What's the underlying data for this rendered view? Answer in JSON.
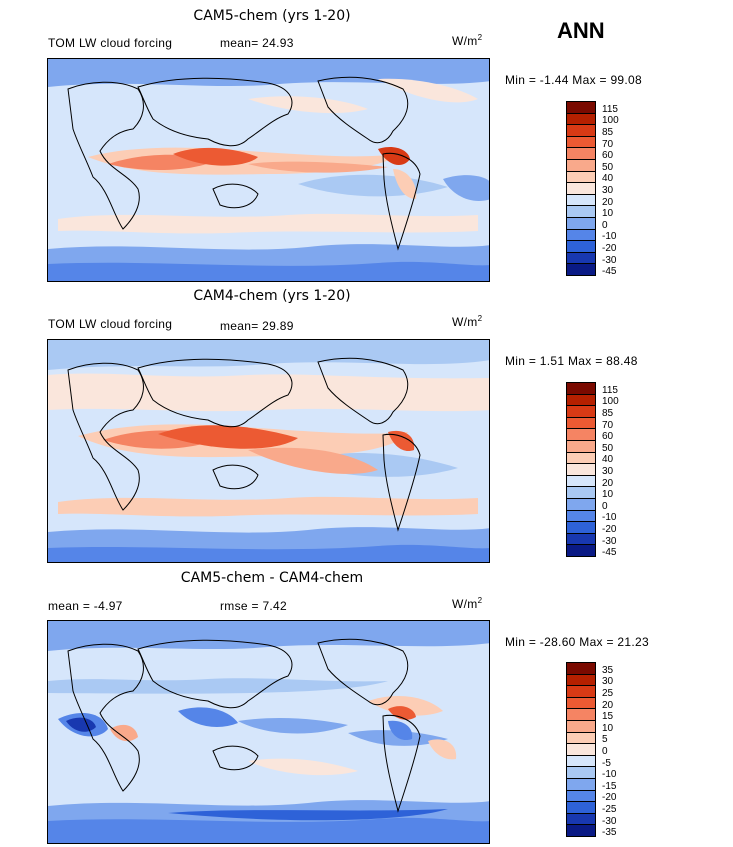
{
  "season": "ANN",
  "units": "W/m",
  "units_exp": "2",
  "panels": [
    {
      "title": "CAM5-chem (yrs 1-20)",
      "variable": "TOM LW cloud forcing",
      "stat1": "mean=  24.93",
      "stat2": "",
      "minmax": "Min =   -1.44 Max =  99.08",
      "cbar_labels": [
        "115",
        "100",
        "85",
        "70",
        "60",
        "50",
        "40",
        "30",
        "20",
        "10",
        "0",
        "-10",
        "-20",
        "-30",
        "-45"
      ]
    },
    {
      "title": "CAM4-chem (yrs 1-20)",
      "variable": "TOM LW cloud forcing",
      "stat1": "mean=  29.89",
      "stat2": "",
      "minmax": "Min =    1.51 Max =  88.48",
      "cbar_labels": [
        "115",
        "100",
        "85",
        "70",
        "60",
        "50",
        "40",
        "30",
        "20",
        "10",
        "0",
        "-10",
        "-20",
        "-30",
        "-45"
      ]
    },
    {
      "title": "CAM5-chem - CAM4-chem",
      "variable": "",
      "stat1": "mean =   -4.97",
      "stat2": "rmse =    7.42",
      "minmax": "Min =  -28.60 Max =  21.23",
      "cbar_labels": [
        "35",
        "30",
        "25",
        "20",
        "15",
        "10",
        "5",
        "0",
        "-5",
        "-10",
        "-15",
        "-20",
        "-25",
        "-30",
        "-35"
      ]
    }
  ],
  "colors": {
    "abs_scale": [
      "#7a0a00",
      "#b52000",
      "#d83a15",
      "#ec5a33",
      "#f58463",
      "#f9a98b",
      "#fccdb5",
      "#fae6dc",
      "#d6e6fb",
      "#aac9f3",
      "#7fa7ee",
      "#5585e8",
      "#2e62d8",
      "#1838b0",
      "#0a1a85"
    ],
    "diff_scale": [
      "#7a0a00",
      "#b52000",
      "#d83a15",
      "#ec5a33",
      "#f58463",
      "#f9a98b",
      "#fccdb5",
      "#fae6dc",
      "#d6e6fb",
      "#aac9f3",
      "#7fa7ee",
      "#5585e8",
      "#2e62d8",
      "#1838b0",
      "#0a1a85"
    ]
  },
  "chart_data": [
    {
      "type": "heatmap",
      "title": "CAM5-chem (yrs 1-20)",
      "variable": "TOM LW cloud forcing",
      "units": "W/m2",
      "mean": 24.93,
      "min": -1.44,
      "max": 99.08,
      "contour_levels": [
        -45,
        -30,
        -20,
        -10,
        0,
        10,
        20,
        30,
        40,
        50,
        60,
        70,
        85,
        100,
        115
      ],
      "legend": "right"
    },
    {
      "type": "heatmap",
      "title": "CAM4-chem (yrs 1-20)",
      "variable": "TOM LW cloud forcing",
      "units": "W/m2",
      "mean": 29.89,
      "min": 1.51,
      "max": 88.48,
      "contour_levels": [
        -45,
        -30,
        -20,
        -10,
        0,
        10,
        20,
        30,
        40,
        50,
        60,
        70,
        85,
        100,
        115
      ],
      "legend": "right"
    },
    {
      "type": "heatmap",
      "title": "CAM5-chem - CAM4-chem",
      "units": "W/m2",
      "mean": -4.97,
      "rmse": 7.42,
      "min": -28.6,
      "max": 21.23,
      "contour_levels": [
        -35,
        -30,
        -25,
        -20,
        -15,
        -10,
        -5,
        0,
        5,
        10,
        15,
        20,
        25,
        30,
        35
      ],
      "legend": "right"
    }
  ]
}
